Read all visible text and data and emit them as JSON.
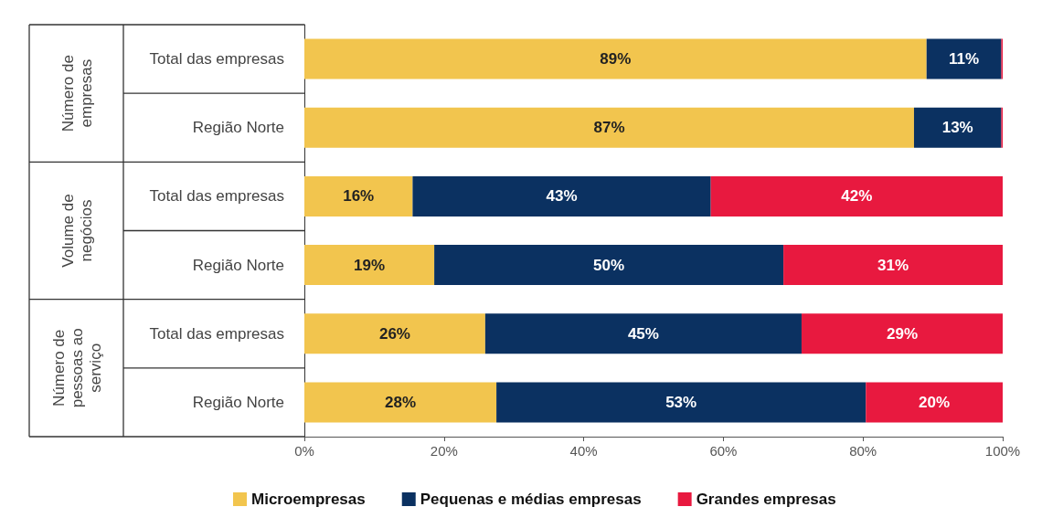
{
  "chart_data": {
    "type": "bar",
    "orientation": "horizontal",
    "stacked": true,
    "categories": [
      "Total das empresas",
      "Região Norte",
      "Total das empresas",
      "Região Norte",
      "Total das empresas",
      "Região Norte"
    ],
    "series": [
      {
        "name": "Microempresas",
        "color": "#f2c54e",
        "values": [
          89.1,
          87.3,
          15.5,
          18.6,
          25.9,
          27.5
        ],
        "value_labels": [
          "89%",
          "87%",
          "16%",
          "19%",
          "26%",
          "28%"
        ]
      },
      {
        "name": "Pequenas e médias empresas",
        "color": "#0b3161",
        "values": [
          10.7,
          12.5,
          42.7,
          50.0,
          45.3,
          52.9
        ],
        "value_labels": [
          "11%",
          "13%",
          "43%",
          "50%",
          "45%",
          "53%"
        ]
      },
      {
        "name": "Grandes empresas",
        "color": "#e8193f",
        "values": [
          0.2,
          0.2,
          41.8,
          31.4,
          28.8,
          19.6
        ],
        "value_labels": [
          null,
          null,
          "42%",
          "31%",
          "29%",
          "20%"
        ]
      }
    ],
    "annotations": [
      "Número de empresas",
      "Volume de negócios",
      "Número de pessoas ao serviço"
    ],
    "xlim": [
      0,
      100
    ],
    "xticks": [
      {
        "value": 0,
        "label": "0%"
      },
      {
        "value": 20,
        "label": "20%"
      },
      {
        "value": 40,
        "label": "40%"
      },
      {
        "value": 60,
        "label": "60%"
      },
      {
        "value": 80,
        "label": "80%"
      },
      {
        "value": 100,
        "label": "100%"
      }
    ],
    "grid": false,
    "legend": "bottom"
  }
}
